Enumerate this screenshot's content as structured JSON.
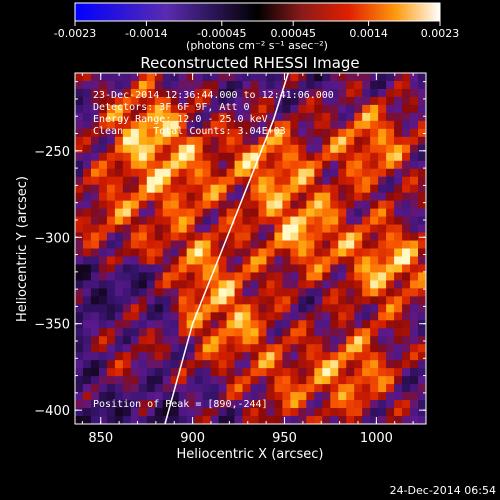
{
  "chart_data": {
    "type": "heatmap",
    "title": "Reconstructed RHESSI Image",
    "xlabel": "Heliocentric X (arcsec)",
    "ylabel": "Heliocentric Y (arcsec)",
    "xlim": [
      836,
      1027
    ],
    "ylim": [
      -408,
      -205
    ],
    "x_ticks": [
      850,
      900,
      950,
      1000
    ],
    "y_ticks": [
      -250,
      -300,
      -350,
      -400
    ],
    "x_tick_labels": [
      "850",
      "900",
      "950",
      "1000"
    ],
    "y_tick_labels": [
      "-250",
      "-300",
      "-350",
      "-400"
    ],
    "colorbar": {
      "range": [
        -0.0023,
        0.0023
      ],
      "ticks": [
        -0.0023,
        -0.0014,
        -0.00045,
        0.00045,
        0.0014,
        0.0023
      ],
      "tick_labels": [
        "-0.0023",
        "-0.0014",
        "-0.00045",
        "0.00045",
        "0.0014",
        "0.0023"
      ],
      "units_label": "(photons cm⁻² s⁻¹ asec⁻²)"
    },
    "annotations": {
      "time_range": "23-Dec-2014 12:36:44.000 to 12:41:06.000",
      "detectors": "Detectors: 3F 6F 9F, Att 0",
      "energy": "Energy Range: 12.0 - 25.0 keV",
      "clean": "Clean     Total Counts: 3.04E+03",
      "peak": "Position of Peak = [890,-244]"
    },
    "peak_position": [
      890,
      -244
    ],
    "limb_curve": [
      [
        885,
        -408
      ],
      [
        900,
        -350
      ],
      [
        915,
        -310
      ],
      [
        930,
        -270
      ],
      [
        944,
        -232
      ],
      [
        952,
        -205
      ]
    ],
    "grid": false
  },
  "footer": {
    "timestamp": "24-Dec-2014 06:54"
  },
  "colors": {
    "background": "#000000",
    "foreground": "#ffffff"
  }
}
